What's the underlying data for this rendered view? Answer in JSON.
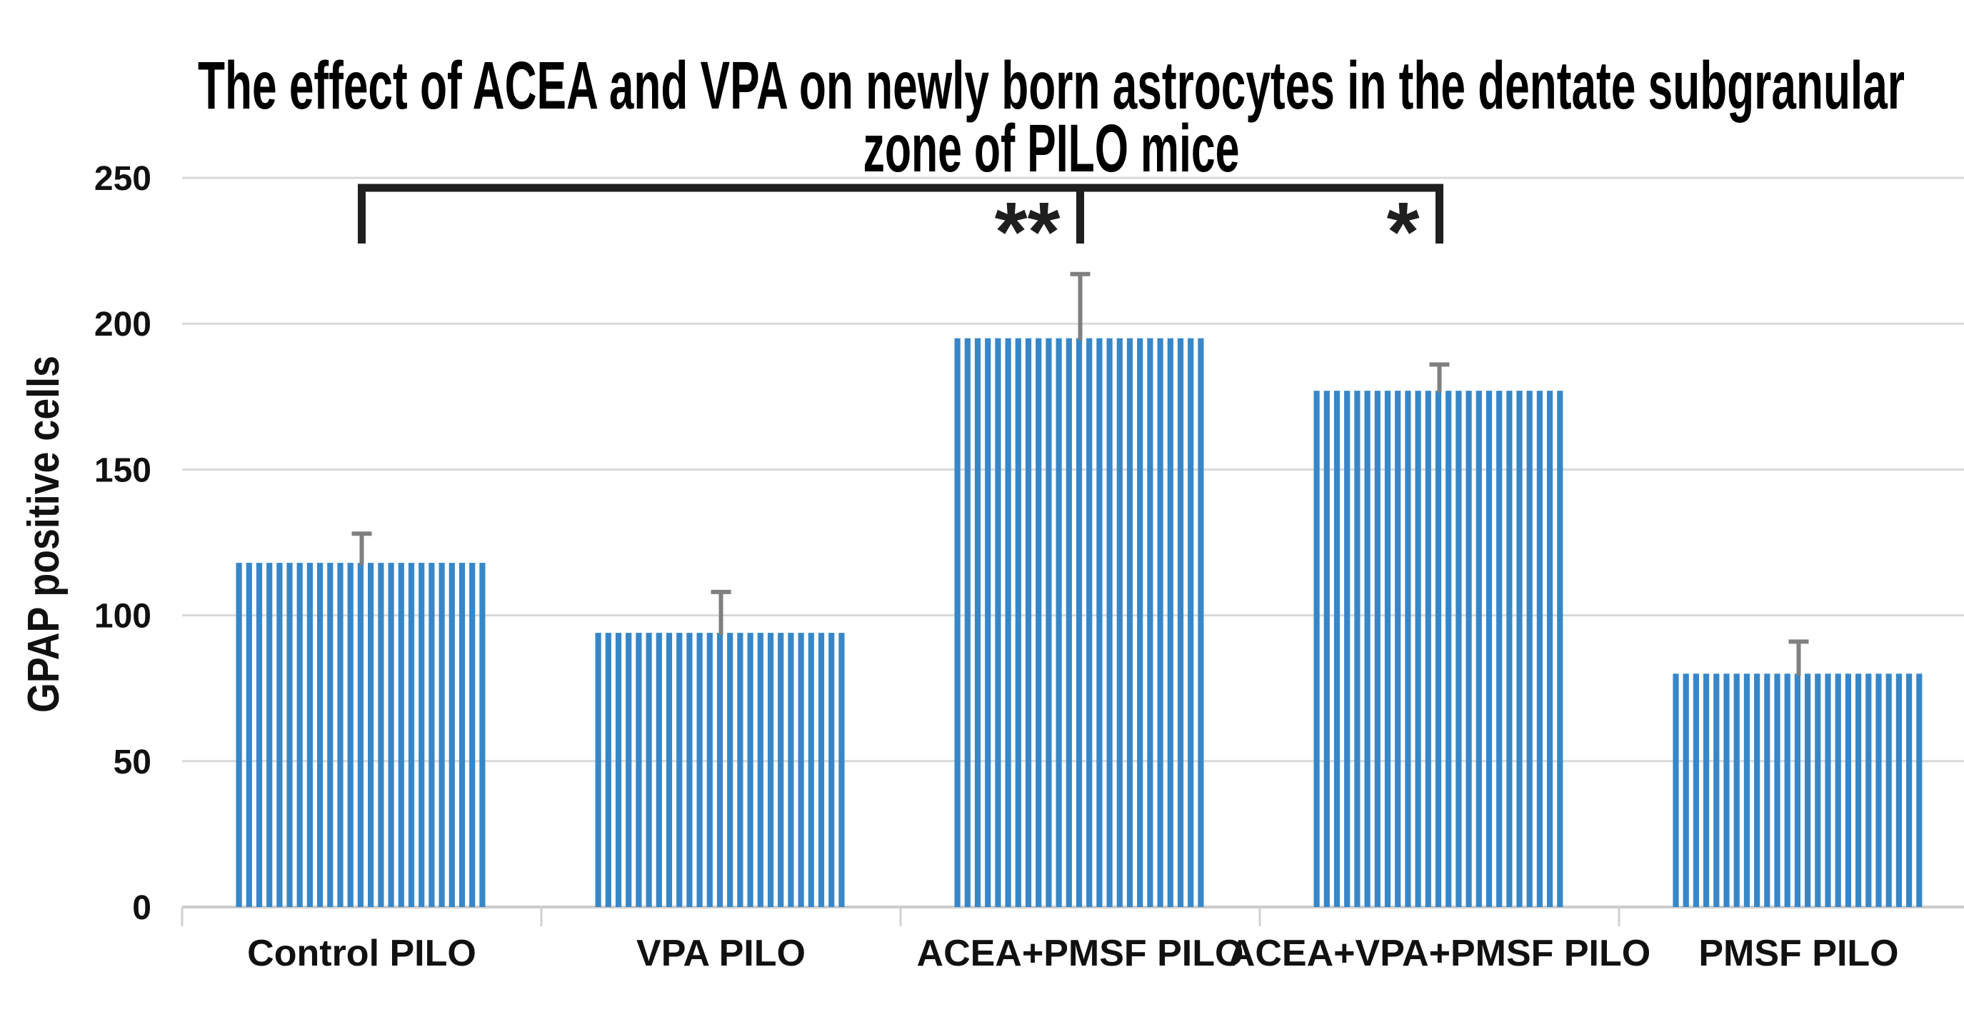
{
  "chart_data": {
    "type": "bar",
    "title": "The effect of ACEA and VPA on newly born astrocytes in the dentate subgranular zone of PILO mice",
    "title_lines": [
      "The effect of ACEA and VPA on newly born astrocytes in the dentate subgranular",
      "zone of PILO mice"
    ],
    "ylabel": "GPAP positive cells",
    "xlabel": "",
    "categories": [
      "Control PILO",
      "VPA PILO",
      "ACEA+PMSF PILO",
      "ACEA+VPA+PMSF PILO",
      "PMSF PILO"
    ],
    "values": [
      118,
      94,
      195,
      177,
      80
    ],
    "error_plus": [
      10,
      14,
      22,
      9,
      11
    ],
    "ylim": [
      0,
      250
    ],
    "yticks": [
      0,
      50,
      100,
      150,
      200,
      250
    ],
    "grid": true,
    "legend_shown": false,
    "bar_pattern": "vertical-stripes",
    "significance": {
      "bracket_from": "Control PILO",
      "bracket_to": "ACEA+VPA+PMSF PILO",
      "bracket_mid_tick": "ACEA+PMSF PILO",
      "annotations": [
        {
          "text": "**",
          "category": "ACEA+PMSF PILO"
        },
        {
          "text": "*",
          "category": "ACEA+VPA+PMSF PILO"
        }
      ]
    },
    "colors": {
      "background": "#FFFFFF",
      "bar_stripe": "#3787C8",
      "gridline": "#D9D9D9",
      "axis_line": "#CCCCCC",
      "boundary_tick": "#D0D0D0",
      "error_bar": "#7F7F7F",
      "bracket": "#1F1F1F",
      "text": "#111111"
    }
  }
}
